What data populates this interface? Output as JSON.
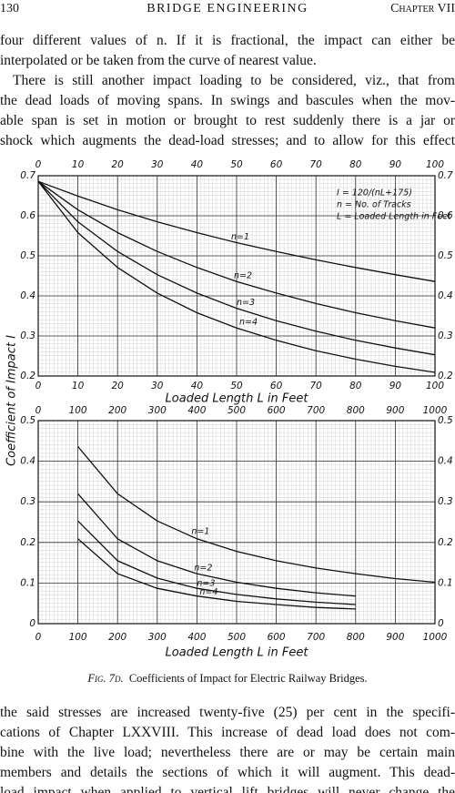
{
  "header": {
    "page_number": "130",
    "title": "BRIDGE ENGINEERING",
    "chapter": "Chapter VII"
  },
  "text_top": [
    "four different values of n.  If it is fractional, the impact can either be",
    "interpolated or be taken from the curve of nearest value.",
    "There is still another impact loading to be considered, viz., that from",
    "the dead loads of moving spans.  In swings and bascules when the mov-",
    "able span is set in motion or brought to rest suddenly there is a jar or",
    "shock which augments the dead-load stresses; and to allow for this effect"
  ],
  "chart_data": [
    {
      "type": "line",
      "ylabel": "Coefficient of Impact I",
      "xlabel": "Loaded Length L in Feet",
      "annotations": [
        "I = 120/(nL+175)",
        "n = No. of Tracks",
        "L = Loaded Length in Feet"
      ],
      "xlim": [
        0,
        100
      ],
      "xticks": [
        0,
        10,
        20,
        30,
        40,
        50,
        60,
        70,
        80,
        90,
        100
      ],
      "ylim": [
        0.2,
        0.7
      ],
      "yticks": [
        0.2,
        0.3,
        0.4,
        0.5,
        0.6,
        0.7
      ],
      "grid": true,
      "x": [
        0,
        10,
        20,
        30,
        40,
        50,
        60,
        70,
        80,
        90,
        100
      ],
      "series": [
        {
          "name": "n=1",
          "color": "#111111",
          "values": [
            0.686,
            0.649,
            0.615,
            0.585,
            0.558,
            0.533,
            0.511,
            0.49,
            0.471,
            0.453,
            0.436
          ]
        },
        {
          "name": "n=2",
          "color": "#111111",
          "values": [
            0.686,
            0.615,
            0.558,
            0.511,
            0.471,
            0.436,
            0.407,
            0.381,
            0.358,
            0.338,
            0.32
          ]
        },
        {
          "name": "n=3",
          "color": "#111111",
          "values": [
            0.686,
            0.585,
            0.511,
            0.453,
            0.407,
            0.369,
            0.338,
            0.312,
            0.289,
            0.27,
            0.253
          ]
        },
        {
          "name": "n=4",
          "color": "#111111",
          "values": [
            0.686,
            0.558,
            0.471,
            0.407,
            0.358,
            0.32,
            0.289,
            0.263,
            0.242,
            0.224,
            0.209
          ]
        }
      ]
    },
    {
      "type": "line",
      "xlabel": "Loaded Length L in Feet",
      "xlim": [
        0,
        1000
      ],
      "xticks": [
        0,
        100,
        200,
        300,
        400,
        500,
        600,
        700,
        800,
        900,
        1000
      ],
      "ylim": [
        0,
        0.5
      ],
      "yticks": [
        0,
        0.1,
        0.2,
        0.3,
        0.4,
        0.5
      ],
      "grid": true,
      "x": [
        100,
        200,
        300,
        400,
        500,
        600,
        700,
        800,
        900,
        1000
      ],
      "series": [
        {
          "name": "n=1",
          "color": "#111111",
          "values": [
            0.436,
            0.32,
            0.253,
            0.209,
            0.178,
            0.155,
            0.137,
            0.123,
            0.111,
            0.102
          ]
        },
        {
          "name": "n=2",
          "color": "#111111",
          "values": [
            0.32,
            0.209,
            0.155,
            0.123,
            0.102,
            0.087,
            0.076,
            0.068,
            null,
            null
          ]
        },
        {
          "name": "n=3",
          "color": "#111111",
          "values": [
            0.253,
            0.155,
            0.112,
            0.087,
            0.072,
            0.061,
            0.053,
            0.047,
            null,
            null
          ]
        },
        {
          "name": "n=4",
          "color": "#111111",
          "values": [
            0.209,
            0.123,
            0.087,
            0.068,
            0.055,
            0.047,
            0.04,
            0.036,
            null,
            null
          ]
        }
      ]
    }
  ],
  "caption": {
    "label": "Fig. 7d.",
    "text": "Coefficients of Impact for Electric Railway Bridges."
  },
  "text_bottom": [
    "the said stresses are increased twenty-five (25) per cent in the specifi-",
    "cations of Chapter LXXVIII.  This increase of dead load does not com-",
    "bine with the live load; nevertheless there are or may be certain main",
    "members and details the sections of which it will augment.  This dead-",
    "load impact when applied to vertical lift bridges will never change the"
  ]
}
